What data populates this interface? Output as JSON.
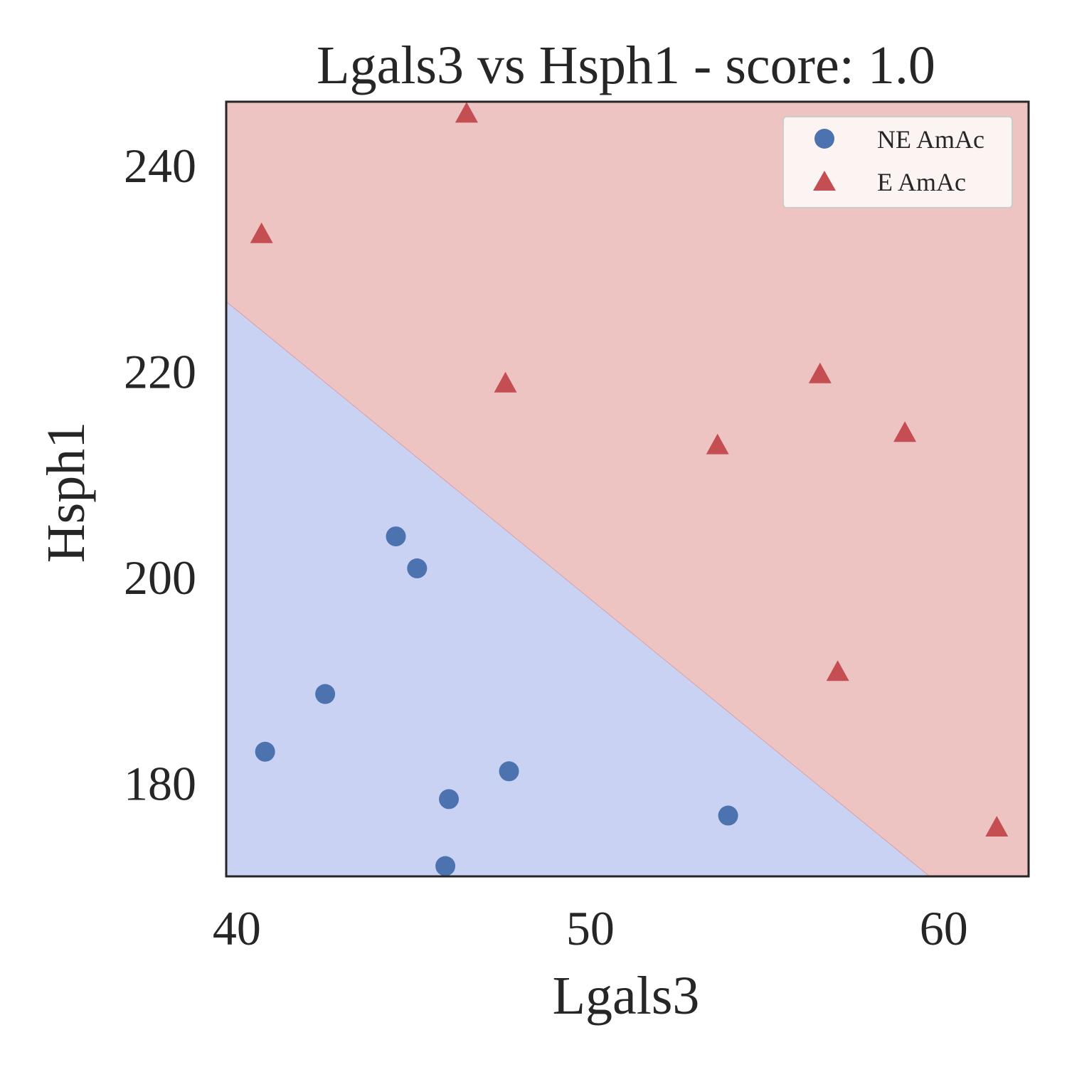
{
  "chart_data": {
    "type": "scatter",
    "title": "Lgals3 vs Hsph1 - score: 1.0",
    "xlabel": "Lgals3",
    "ylabel": "Hsph1",
    "xlim": [
      39.7,
      62.4
    ],
    "ylim": [
      171.0,
      246.2
    ],
    "x_ticks": [
      40,
      50,
      60
    ],
    "y_ticks": [
      180,
      200,
      220,
      240
    ],
    "grid": false,
    "legend_position": "top-right",
    "decision_regions": {
      "boundary_line": [
        [
          39.7,
          226.8
        ],
        [
          59.6,
          171.0
        ]
      ],
      "upper_region_color": "#eec4c3",
      "lower_region_color": "#c9d2f2",
      "upper_region_class": "E AmAc",
      "lower_region_class": "NE AmAc"
    },
    "series": [
      {
        "name": "NE AmAc",
        "marker": "circle",
        "color": "#4c72b0",
        "points": [
          {
            "x": 44.5,
            "y": 204.0
          },
          {
            "x": 45.1,
            "y": 200.9
          },
          {
            "x": 42.5,
            "y": 188.7
          },
          {
            "x": 40.8,
            "y": 183.1
          },
          {
            "x": 47.7,
            "y": 181.2
          },
          {
            "x": 46.0,
            "y": 178.5
          },
          {
            "x": 53.9,
            "y": 176.9
          },
          {
            "x": 45.9,
            "y": 172.0
          }
        ]
      },
      {
        "name": "E AmAc",
        "marker": "triangle",
        "color": "#c44e52",
        "points": [
          {
            "x": 46.5,
            "y": 245.0
          },
          {
            "x": 40.7,
            "y": 233.3
          },
          {
            "x": 47.6,
            "y": 218.8
          },
          {
            "x": 56.5,
            "y": 219.7
          },
          {
            "x": 53.6,
            "y": 212.8
          },
          {
            "x": 58.9,
            "y": 214.0
          },
          {
            "x": 57.0,
            "y": 190.8
          },
          {
            "x": 61.5,
            "y": 175.7
          }
        ]
      }
    ]
  }
}
